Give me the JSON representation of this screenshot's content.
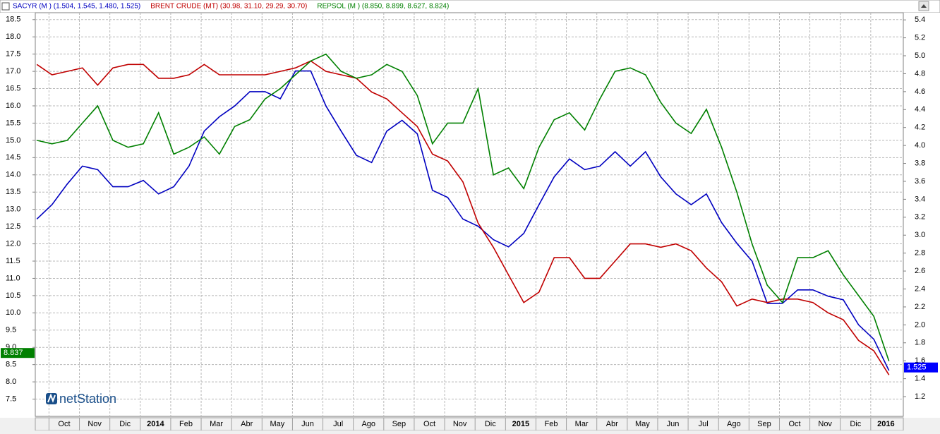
{
  "chart_data": {
    "type": "line",
    "x": [
      -0.4,
      0.1,
      0.6,
      1.1,
      1.6,
      2.1,
      2.6,
      3.1,
      3.6,
      4.1,
      4.6,
      5.1,
      5.6,
      6.1,
      6.6,
      7.1,
      7.6,
      8.1,
      8.6,
      9.1,
      9.6,
      10.1,
      10.6,
      11.1,
      11.6,
      12.1,
      12.6,
      13.1,
      13.6,
      14.1,
      14.6,
      15.1,
      15.6,
      16.1,
      16.6,
      17.1,
      17.6,
      18.1,
      18.6,
      19.1,
      19.6,
      20.1,
      20.6,
      21.1,
      21.6,
      22.1,
      22.6,
      23.1,
      23.6,
      24.1,
      24.6,
      25.1,
      25.6,
      26.1,
      26.6,
      27.1,
      27.6
    ],
    "series": [
      {
        "name": "SACYR (M ) (1.504, 1.545, 1.480, 1.525)",
        "color": "#0000c0",
        "axis": "y2",
        "values": [
          3.18,
          3.34,
          3.57,
          3.77,
          3.73,
          3.54,
          3.54,
          3.61,
          3.46,
          3.54,
          3.77,
          4.16,
          4.32,
          4.44,
          4.6,
          4.6,
          4.52,
          4.83,
          4.83,
          4.44,
          4.16,
          3.89,
          3.81,
          4.16,
          4.28,
          4.13,
          3.5,
          3.42,
          3.18,
          3.1,
          2.95,
          2.87,
          3.02,
          3.34,
          3.65,
          3.85,
          3.73,
          3.77,
          3.93,
          3.77,
          3.93,
          3.65,
          3.46,
          3.34,
          3.46,
          3.14,
          2.91,
          2.71,
          2.24,
          2.24,
          2.39,
          2.39,
          2.32,
          2.28,
          2.0,
          1.84,
          1.49
        ]
      },
      {
        "name": "BRENT CRUDE (MT) (30.98, 31.10, 29.29, 30.70)",
        "color": "#c00000",
        "axis": "y",
        "values": [
          17.2,
          16.9,
          17.0,
          17.1,
          16.6,
          17.1,
          17.2,
          17.2,
          16.8,
          16.8,
          16.9,
          17.2,
          16.9,
          16.9,
          16.9,
          16.9,
          17.0,
          17.1,
          17.3,
          17.0,
          16.9,
          16.8,
          16.4,
          16.2,
          15.8,
          15.4,
          14.6,
          14.4,
          13.8,
          12.6,
          11.9,
          11.1,
          10.3,
          10.6,
          11.6,
          11.6,
          11.0,
          11.0,
          11.5,
          12.0,
          12.0,
          11.9,
          12.0,
          11.8,
          11.3,
          10.9,
          10.2,
          10.4,
          10.3,
          10.4,
          10.4,
          10.3,
          10.0,
          9.8,
          9.2,
          8.9,
          8.2
        ]
      },
      {
        "name": "REPSOL (M ) (8.850, 8.899, 8.627, 8.824)",
        "color": "#008000",
        "axis": "y",
        "values": [
          15.0,
          14.9,
          15.0,
          15.5,
          16.0,
          15.0,
          14.8,
          14.9,
          15.8,
          14.6,
          14.8,
          15.1,
          14.6,
          15.4,
          15.6,
          16.2,
          16.5,
          16.9,
          17.3,
          17.5,
          17.0,
          16.8,
          16.9,
          17.2,
          17.0,
          16.3,
          14.9,
          15.5,
          15.5,
          16.5,
          14.0,
          14.2,
          13.6,
          14.8,
          15.6,
          15.8,
          15.3,
          16.2,
          17.0,
          17.1,
          16.9,
          16.1,
          15.5,
          15.2,
          15.9,
          14.8,
          13.5,
          12.0,
          10.8,
          10.3,
          11.6,
          11.6,
          11.8,
          11.1,
          10.5,
          9.9,
          8.6
        ]
      }
    ],
    "xlim": [
      -0.45,
      28.07
    ],
    "xticks": [
      {
        "value": 0,
        "label": "Oct"
      },
      {
        "value": 1,
        "label": "Nov"
      },
      {
        "value": 2,
        "label": "Dic"
      },
      {
        "value": 3,
        "label": "2014"
      },
      {
        "value": 4,
        "label": "Feb"
      },
      {
        "value": 5,
        "label": "Mar"
      },
      {
        "value": 6,
        "label": "Abr"
      },
      {
        "value": 7,
        "label": "May"
      },
      {
        "value": 8,
        "label": "Jun"
      },
      {
        "value": 9,
        "label": "Jul"
      },
      {
        "value": 10,
        "label": "Ago"
      },
      {
        "value": 11,
        "label": "Sep"
      },
      {
        "value": 12,
        "label": "Oct"
      },
      {
        "value": 13,
        "label": "Nov"
      },
      {
        "value": 14,
        "label": "Dic"
      },
      {
        "value": 15,
        "label": "2015"
      },
      {
        "value": 16,
        "label": "Feb"
      },
      {
        "value": 17,
        "label": "Mar"
      },
      {
        "value": 18,
        "label": "Abr"
      },
      {
        "value": 19,
        "label": "May"
      },
      {
        "value": 20,
        "label": "Jun"
      },
      {
        "value": 21,
        "label": "Jul"
      },
      {
        "value": 22,
        "label": "Ago"
      },
      {
        "value": 23,
        "label": "Sep"
      },
      {
        "value": 24,
        "label": "Oct"
      },
      {
        "value": 25,
        "label": "Nov"
      },
      {
        "value": 26,
        "label": "Dic"
      },
      {
        "value": 27,
        "label": "2016"
      }
    ],
    "ylim": [
      7.0,
      18.7
    ],
    "yticks": [
      7.5,
      {
        "value": 8,
        "label": "8.0"
      },
      8.5,
      {
        "value": 9,
        "label": "9.0"
      },
      9.5,
      {
        "value": 10,
        "label": "10.0"
      },
      10.5,
      {
        "value": 11,
        "label": "11.0"
      },
      11.5,
      {
        "value": 12,
        "label": "12.0"
      },
      12.5,
      {
        "value": 13,
        "label": "13.0"
      },
      13.5,
      {
        "value": 14,
        "label": "14.0"
      },
      14.5,
      {
        "value": 15,
        "label": "15.0"
      },
      15.5,
      {
        "value": 16,
        "label": "16.0"
      },
      16.5,
      {
        "value": 17,
        "label": "17.0"
      },
      17.5,
      {
        "value": 18,
        "label": "18.0"
      },
      18.5
    ],
    "y2lim": [
      0.98,
      5.48
    ],
    "y2ticks": [
      1.2,
      1.4,
      1.6,
      1.8,
      {
        "value": 2,
        "label": "2.0"
      },
      2.2,
      2.4,
      2.6,
      2.8,
      {
        "value": 3,
        "label": "3.0"
      },
      3.2,
      3.4,
      3.6,
      3.8,
      {
        "value": 4,
        "label": "4.0"
      },
      4.2,
      4.4,
      4.6,
      4.8,
      {
        "value": 5,
        "label": "5.0"
      },
      5.2,
      5.4
    ],
    "grid": true,
    "last_values": [
      {
        "axis": "y",
        "value": 8.837,
        "color": "#008000"
      },
      {
        "axis": "y2",
        "value": 1.525,
        "color": "#0000ff"
      }
    ],
    "watermark": "netStation"
  }
}
